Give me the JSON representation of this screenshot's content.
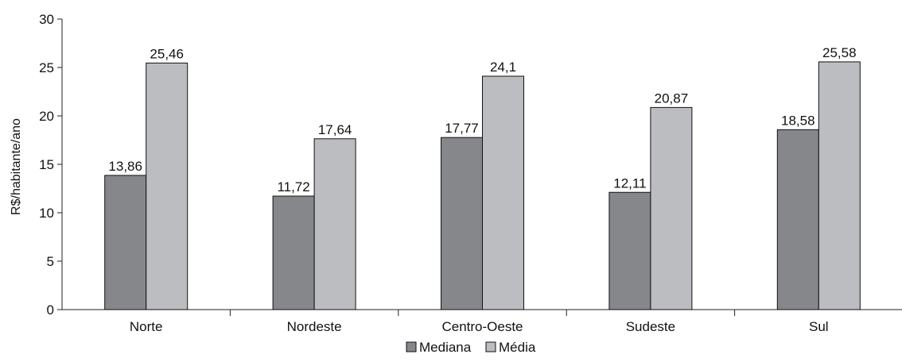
{
  "chart_data": {
    "type": "bar",
    "ylabel": "R$/habitante/ano",
    "xlabel": "",
    "ylim": [
      0,
      30
    ],
    "yticks": [
      0,
      5,
      10,
      15,
      20,
      25,
      30
    ],
    "grid": false,
    "legend_position": "bottom",
    "categories": [
      "Norte",
      "Nordeste",
      "Centro-Oeste",
      "Sudeste",
      "Sul"
    ],
    "series": [
      {
        "name": "Mediana",
        "color": "#86878b",
        "values": [
          13.86,
          11.72,
          17.77,
          12.11,
          18.58
        ],
        "labels": [
          "13,86",
          "11,72",
          "17,77",
          "12,11",
          "18,58"
        ]
      },
      {
        "name": "Média",
        "color": "#bcbdc1",
        "values": [
          25.46,
          17.64,
          24.1,
          20.87,
          25.58
        ],
        "labels": [
          "25,46",
          "17,64",
          "24,1",
          "20,87",
          "25,58"
        ]
      }
    ]
  }
}
